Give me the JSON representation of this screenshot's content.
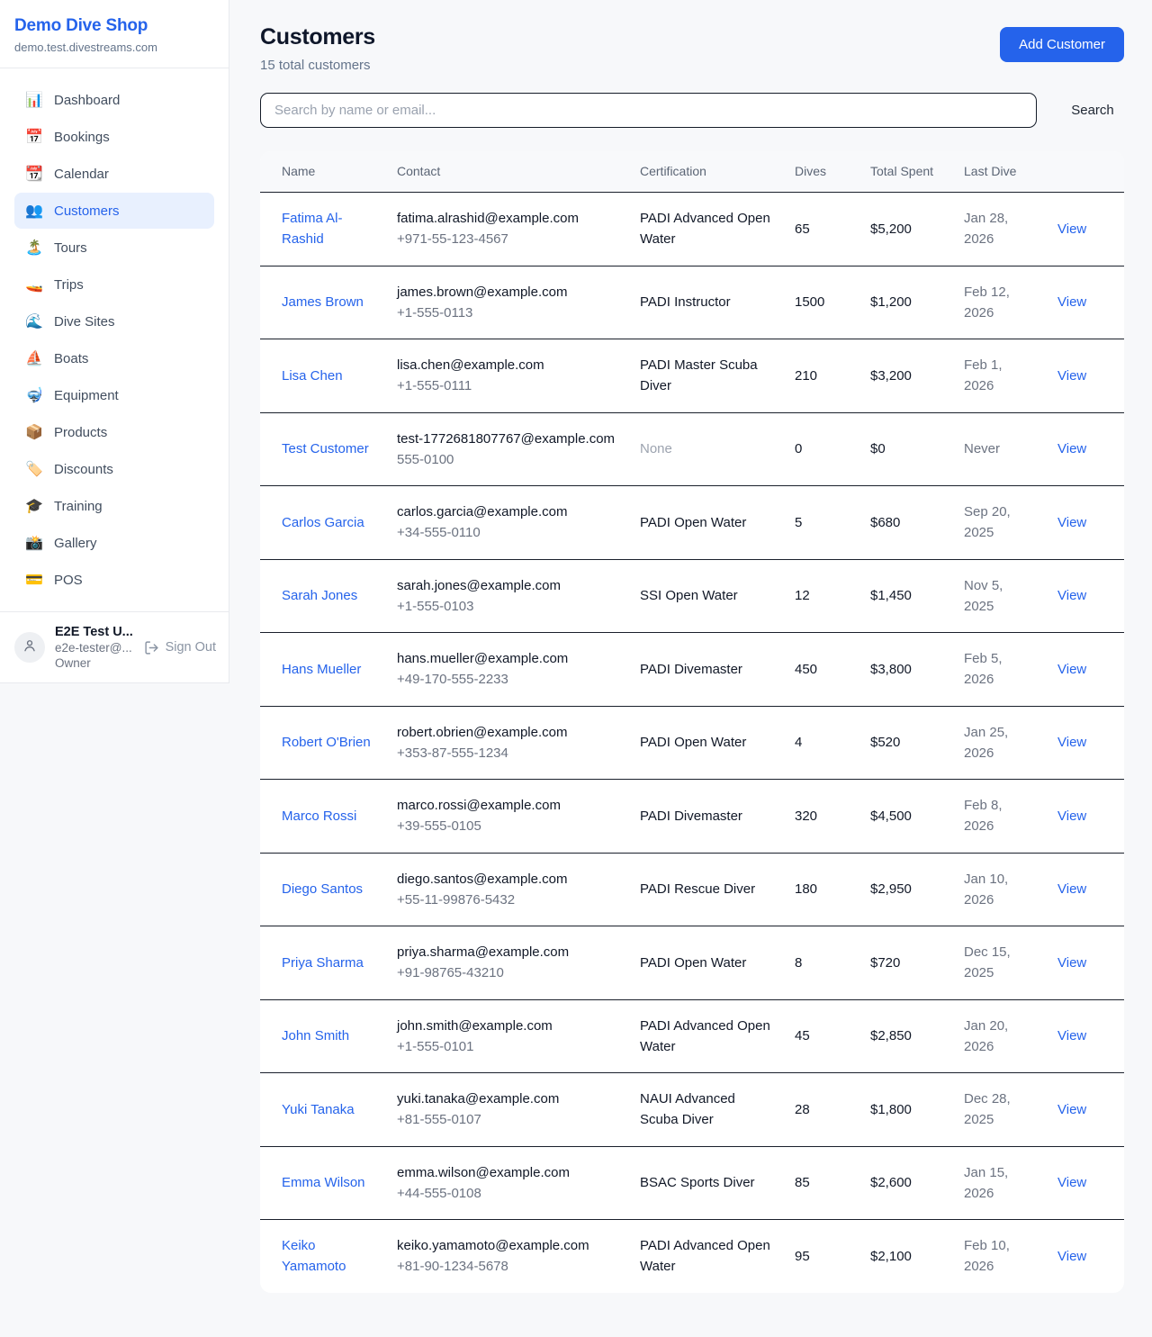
{
  "colors": {
    "accent": "#2563eb",
    "page_background": "#f7f8fa",
    "active_item_background": "#e8f0fe",
    "row_divider": "#1a202c"
  },
  "sidebar": {
    "brand": {
      "title": "Demo Dive Shop",
      "domain": "demo.test.divestreams.com"
    },
    "items": [
      {
        "icon": "📊",
        "label": "Dashboard",
        "active": false
      },
      {
        "icon": "📅",
        "label": "Bookings",
        "active": false
      },
      {
        "icon": "📆",
        "label": "Calendar",
        "active": false
      },
      {
        "icon": "👥",
        "label": "Customers",
        "active": true
      },
      {
        "icon": "🏝️",
        "label": "Tours",
        "active": false
      },
      {
        "icon": "🚤",
        "label": "Trips",
        "active": false
      },
      {
        "icon": "🌊",
        "label": "Dive Sites",
        "active": false
      },
      {
        "icon": "⛵",
        "label": "Boats",
        "active": false
      },
      {
        "icon": "🤿",
        "label": "Equipment",
        "active": false
      },
      {
        "icon": "📦",
        "label": "Products",
        "active": false
      },
      {
        "icon": "🏷️",
        "label": "Discounts",
        "active": false
      },
      {
        "icon": "🎓",
        "label": "Training",
        "active": false
      },
      {
        "icon": "📸",
        "label": "Gallery",
        "active": false
      },
      {
        "icon": "💳",
        "label": "POS",
        "active": false
      }
    ],
    "user": {
      "name": "E2E Test U...",
      "email": "e2e-tester@...",
      "role": "Owner",
      "sign_out_label": "Sign Out"
    }
  },
  "header": {
    "title": "Customers",
    "subtitle": "15 total customers",
    "add_button_label": "Add Customer"
  },
  "search": {
    "placeholder": "Search by name or email...",
    "button_label": "Search"
  },
  "table": {
    "columns": [
      "Name",
      "Contact",
      "Certification",
      "Dives",
      "Total Spent",
      "Last Dive",
      ""
    ],
    "view_label": "View",
    "rows": [
      {
        "name": "Fatima Al-Rashid",
        "email": "fatima.alrashid@example.com",
        "phone": "+971-55-123-4567",
        "certification": "PADI Advanced Open Water",
        "dives": "65",
        "total_spent": "$5,200",
        "last_dive": "Jan 28, 2026"
      },
      {
        "name": "James Brown",
        "email": "james.brown@example.com",
        "phone": "+1-555-0113",
        "certification": "PADI Instructor",
        "dives": "1500",
        "total_spent": "$1,200",
        "last_dive": "Feb 12, 2026"
      },
      {
        "name": "Lisa Chen",
        "email": "lisa.chen@example.com",
        "phone": "+1-555-0111",
        "certification": "PADI Master Scuba Diver",
        "dives": "210",
        "total_spent": "$3,200",
        "last_dive": "Feb 1, 2026"
      },
      {
        "name": "Test Customer",
        "email": "test-1772681807767@example.com",
        "phone": "555-0100",
        "certification": "None",
        "dives": "0",
        "total_spent": "$0",
        "last_dive": "Never"
      },
      {
        "name": "Carlos Garcia",
        "email": "carlos.garcia@example.com",
        "phone": "+34-555-0110",
        "certification": "PADI Open Water",
        "dives": "5",
        "total_spent": "$680",
        "last_dive": "Sep 20, 2025"
      },
      {
        "name": "Sarah Jones",
        "email": "sarah.jones@example.com",
        "phone": "+1-555-0103",
        "certification": "SSI Open Water",
        "dives": "12",
        "total_spent": "$1,450",
        "last_dive": "Nov 5, 2025"
      },
      {
        "name": "Hans Mueller",
        "email": "hans.mueller@example.com",
        "phone": "+49-170-555-2233",
        "certification": "PADI Divemaster",
        "dives": "450",
        "total_spent": "$3,800",
        "last_dive": "Feb 5, 2026"
      },
      {
        "name": "Robert O'Brien",
        "email": "robert.obrien@example.com",
        "phone": "+353-87-555-1234",
        "certification": "PADI Open Water",
        "dives": "4",
        "total_spent": "$520",
        "last_dive": "Jan 25, 2026"
      },
      {
        "name": "Marco Rossi",
        "email": "marco.rossi@example.com",
        "phone": "+39-555-0105",
        "certification": "PADI Divemaster",
        "dives": "320",
        "total_spent": "$4,500",
        "last_dive": "Feb 8, 2026"
      },
      {
        "name": "Diego Santos",
        "email": "diego.santos@example.com",
        "phone": "+55-11-99876-5432",
        "certification": "PADI Rescue Diver",
        "dives": "180",
        "total_spent": "$2,950",
        "last_dive": "Jan 10, 2026"
      },
      {
        "name": "Priya Sharma",
        "email": "priya.sharma@example.com",
        "phone": "+91-98765-43210",
        "certification": "PADI Open Water",
        "dives": "8",
        "total_spent": "$720",
        "last_dive": "Dec 15, 2025"
      },
      {
        "name": "John Smith",
        "email": "john.smith@example.com",
        "phone": "+1-555-0101",
        "certification": "PADI Advanced Open Water",
        "dives": "45",
        "total_spent": "$2,850",
        "last_dive": "Jan 20, 2026"
      },
      {
        "name": "Yuki Tanaka",
        "email": "yuki.tanaka@example.com",
        "phone": "+81-555-0107",
        "certification": "NAUI Advanced Scuba Diver",
        "dives": "28",
        "total_spent": "$1,800",
        "last_dive": "Dec 28, 2025"
      },
      {
        "name": "Emma Wilson",
        "email": "emma.wilson@example.com",
        "phone": "+44-555-0108",
        "certification": "BSAC Sports Diver",
        "dives": "85",
        "total_spent": "$2,600",
        "last_dive": "Jan 15, 2026"
      },
      {
        "name": "Keiko Yamamoto",
        "email": "keiko.yamamoto@example.com",
        "phone": "+81-90-1234-5678",
        "certification": "PADI Advanced Open Water",
        "dives": "95",
        "total_spent": "$2,100",
        "last_dive": "Feb 10, 2026"
      }
    ]
  }
}
